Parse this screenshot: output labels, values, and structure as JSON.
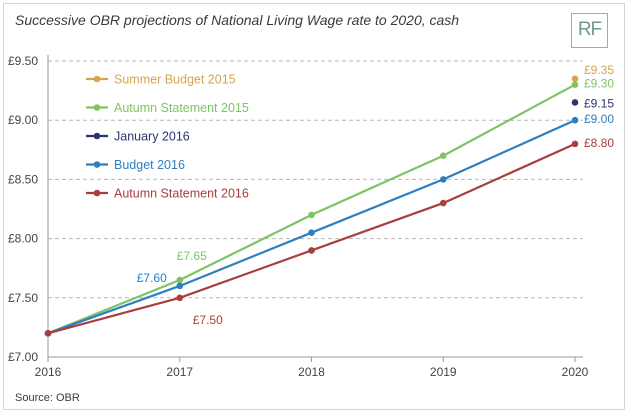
{
  "header": {
    "title": "Successive OBR projections of National Living Wage rate to 2020, cash",
    "logo": "RF"
  },
  "footer": {
    "source": "Source: OBR"
  },
  "chart_data": {
    "type": "line",
    "title": "Successive OBR projections of National Living Wage rate to 2020, cash",
    "xlabel": "",
    "ylabel": "",
    "x": [
      2016,
      2017,
      2018,
      2019,
      2020
    ],
    "x_tick_labels": [
      "2016",
      "2017",
      "2018",
      "2019",
      "2020"
    ],
    "ylim": [
      7.0,
      9.5
    ],
    "y_ticks": [
      7.0,
      7.5,
      8.0,
      8.5,
      9.0,
      9.5
    ],
    "y_tick_labels": [
      "£7.00",
      "£7.50",
      "£8.00",
      "£8.50",
      "£9.00",
      "£9.50"
    ],
    "grid": "horizontal dashed",
    "legend_position": "top-left",
    "series": [
      {
        "name": "Summer Budget 2015",
        "color": "#d4a44f",
        "x": [
          2020
        ],
        "values": [
          9.35
        ],
        "connected": false
      },
      {
        "name": "Autumn Statement 2015",
        "color": "#7dc465",
        "x": [
          2016,
          2017,
          2018,
          2019,
          2020
        ],
        "values": [
          7.2,
          7.65,
          8.2,
          8.7,
          9.3
        ],
        "connected": true
      },
      {
        "name": "January 2016",
        "color": "#2e3473",
        "x": [
          2020
        ],
        "values": [
          9.15
        ],
        "connected": false
      },
      {
        "name": "Budget 2016",
        "color": "#2e7fc1",
        "x": [
          2016,
          2017,
          2018,
          2019,
          2020
        ],
        "values": [
          7.2,
          7.6,
          8.05,
          8.5,
          9.0
        ],
        "connected": true
      },
      {
        "name": "Autumn Statement 2016",
        "color": "#a83e3e",
        "x": [
          2016,
          2017,
          2018,
          2019,
          2020
        ],
        "values": [
          7.2,
          7.5,
          7.9,
          8.3,
          8.8
        ],
        "connected": true
      }
    ],
    "annotations": [
      {
        "text": "£9.35",
        "series": 0,
        "x": 2020,
        "y": 9.35
      },
      {
        "text": "£9.30",
        "series": 1,
        "x": 2020,
        "y": 9.3
      },
      {
        "text": "£9.15",
        "series": 2,
        "x": 2020,
        "y": 9.15
      },
      {
        "text": "£9.00",
        "series": 3,
        "x": 2020,
        "y": 9.0
      },
      {
        "text": "£8.80",
        "series": 4,
        "x": 2020,
        "y": 8.8
      },
      {
        "text": "£7.65",
        "series": 1,
        "x": 2017,
        "y": 7.65
      },
      {
        "text": "£7.60",
        "series": 3,
        "x": 2017,
        "y": 7.6
      },
      {
        "text": "£7.50",
        "series": 4,
        "x": 2017,
        "y": 7.5
      }
    ]
  }
}
